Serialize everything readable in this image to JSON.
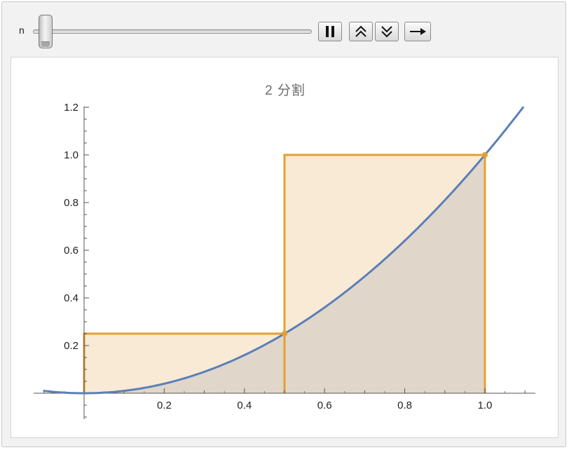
{
  "controls": {
    "slider_label": "n",
    "slider_value_fraction": 0.0,
    "buttons": [
      {
        "name": "pause-button",
        "icon": "pause-icon"
      },
      {
        "name": "faster-button",
        "icon": "double-chevron-up-icon"
      },
      {
        "name": "slower-button",
        "icon": "double-chevron-down-icon"
      },
      {
        "name": "direction-button",
        "icon": "arrow-right-icon"
      }
    ]
  },
  "plot": {
    "title": "2 分割"
  },
  "chart_data": {
    "type": "area",
    "title": "2 分割",
    "xlabel": "",
    "ylabel": "",
    "xlim": [
      -0.1,
      1.1
    ],
    "ylim": [
      -0.1,
      1.2
    ],
    "x_ticks": [
      {
        "value": 0.2,
        "label": "0.2"
      },
      {
        "value": 0.4,
        "label": "0.4"
      },
      {
        "value": 0.6,
        "label": "0.6"
      },
      {
        "value": 0.8,
        "label": "0.8"
      },
      {
        "value": 1.0,
        "label": "1.0"
      }
    ],
    "y_ticks": [
      {
        "value": 0.2,
        "label": "0.2"
      },
      {
        "value": 0.4,
        "label": "0.4"
      },
      {
        "value": 0.6,
        "label": "0.6"
      },
      {
        "value": 0.8,
        "label": "0.8"
      },
      {
        "value": 1.0,
        "label": "1.0"
      },
      {
        "value": 1.2,
        "label": "1.2"
      }
    ],
    "curve": {
      "function": "x^2",
      "x_range": [
        -0.1,
        1.1
      ],
      "color": "#5b7fb8"
    },
    "rectangles": [
      {
        "x0": 0.0,
        "x1": 0.5,
        "height": 0.25
      },
      {
        "x0": 0.5,
        "x1": 1.0,
        "height": 1.0
      }
    ],
    "sample_points": [
      {
        "x": 0.5,
        "y": 0.25
      },
      {
        "x": 1.0,
        "y": 1.0
      }
    ],
    "rect_color": "#e3a032",
    "rect_fill": "#f9ead6",
    "area_under_curve_fill": "#ddd5c9",
    "grid": false
  }
}
